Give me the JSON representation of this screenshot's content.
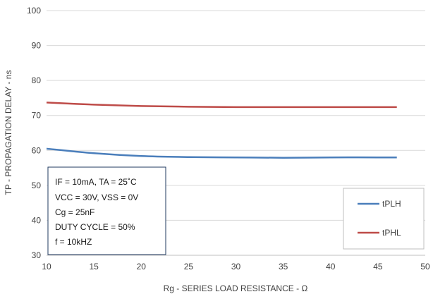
{
  "chart_data": {
    "type": "line",
    "xlabel": "Rg - SERIES LOAD RESISTANCE - Ω",
    "ylabel": "TP - PROPAGATION DELAY - ns",
    "xlim": [
      10,
      50
    ],
    "ylim": [
      30,
      100
    ],
    "x_ticks": [
      "10",
      "15",
      "20",
      "25",
      "30",
      "35",
      "40",
      "45",
      "50"
    ],
    "y_ticks": [
      "30",
      "40",
      "50",
      "60",
      "70",
      "80",
      "90",
      "100"
    ],
    "grid": "horizontal",
    "legend_position": "bottom-right",
    "series": [
      {
        "name": "tPLH",
        "color": "#4a7ebb",
        "x": [
          10,
          15,
          20,
          25,
          30,
          35,
          40,
          45,
          47
        ],
        "y": [
          60.5,
          59.2,
          58.4,
          58.1,
          58.0,
          57.9,
          58.0,
          58.0,
          58.0
        ]
      },
      {
        "name": "tPHL",
        "color": "#be4b48",
        "x": [
          10,
          15,
          20,
          25,
          30,
          35,
          40,
          45,
          47
        ],
        "y": [
          73.7,
          73.1,
          72.7,
          72.5,
          72.4,
          72.4,
          72.4,
          72.4,
          72.4
        ]
      }
    ],
    "annotation": [
      "IF = 10mA, TA = 25˚C",
      "VCC = 30V, VSS = 0V",
      "Cg = 25nF",
      "DUTY CYCLE = 50%",
      "f = 10kHZ"
    ]
  }
}
